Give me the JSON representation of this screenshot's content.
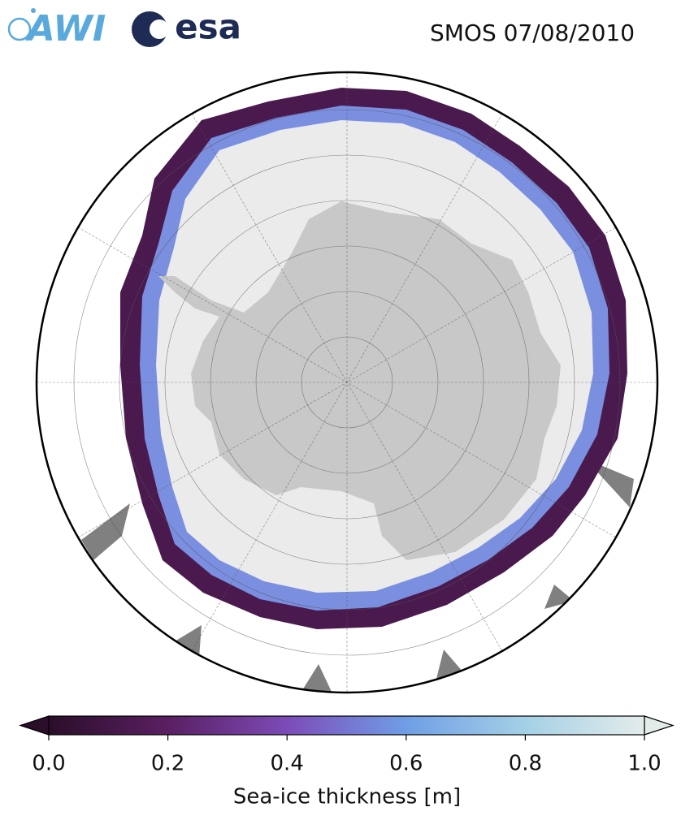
{
  "header": {
    "logos": [
      "AWI",
      "esa"
    ],
    "title": "SMOS 07/08/2010"
  },
  "colorbar": {
    "label": "Sea-ice thickness [m]",
    "range": [
      0,
      1
    ],
    "ticks": [
      {
        "value": 0,
        "label": "0.0"
      },
      {
        "value": 0.2,
        "label": "0.2"
      },
      {
        "value": 0.4,
        "label": "0.4"
      },
      {
        "value": 0.6,
        "label": "0.6"
      },
      {
        "value": 0.8,
        "label": "0.8"
      },
      {
        "value": 1,
        "label": "1.0"
      }
    ],
    "colors": [
      "#2a0e2a",
      "#5a1f62",
      "#7d4bb8",
      "#6f9ee6",
      "#a4d0e6",
      "#e4ecea"
    ],
    "extend": "both"
  }
}
